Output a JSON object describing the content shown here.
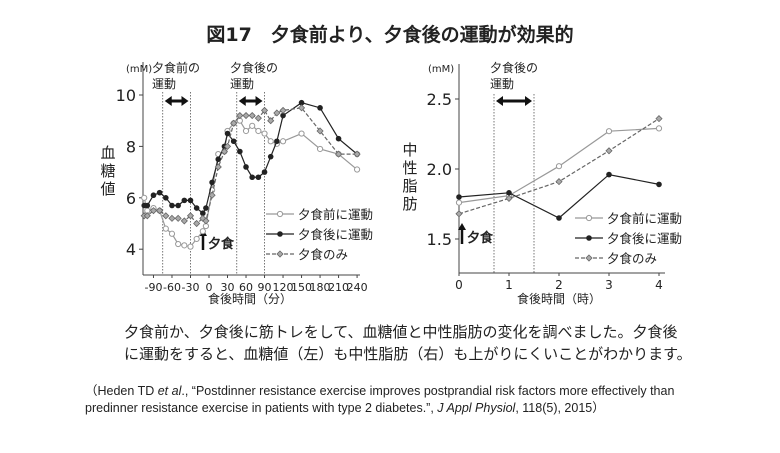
{
  "title": "図17　夕食前より、夕食後の運動が効果的",
  "caption": [
    "夕食前か、夕食後に筋トレをして、血糖値と中性脂肪の変化を調べました。夕食後",
    "に運動をすると、血糖値（左）も中性脂肪（右）も上がりにくいことがわかります。"
  ],
  "citation": {
    "pre": "（Heden TD ",
    "etal": "et al",
    "mid": "., “Postdinner resistance exercise improves postprandial risk factors more effectively than predinner resistance exercise in patients with type 2 diabetes.”, ",
    "journal": "J Appl Physiol",
    "post": ", 118(5), 2015）"
  },
  "chart_data": [
    {
      "type": "line",
      "unit": "(mM)",
      "ylabel": "血糖値",
      "xlabel": "食後時間（分）",
      "xticks": [
        -90,
        -60,
        -30,
        0,
        30,
        60,
        90,
        120,
        150,
        180,
        210,
        240
      ],
      "yticks": [
        4,
        6,
        8,
        10
      ],
      "ylim": [
        3,
        10.5
      ],
      "xlim": [
        -108,
        245
      ],
      "annotations": [
        {
          "text": [
            "夕食前の",
            "運動"
          ],
          "range": [
            -75,
            -30
          ]
        },
        {
          "text": [
            "夕食後の",
            "運動"
          ],
          "range": [
            45,
            90
          ]
        },
        {
          "text": "夕食",
          "x": -5
        }
      ],
      "x": [
        -105,
        -100,
        -90,
        -80,
        -70,
        -60,
        -50,
        -40,
        -30,
        -20,
        -10,
        -5,
        5,
        15,
        25,
        30,
        40,
        50,
        60,
        70,
        80,
        90,
        100,
        110,
        120,
        150,
        180,
        210,
        240
      ],
      "series": [
        {
          "name": "夕食前に運動",
          "marker": "open-circle",
          "color": "#999999",
          "values": [
            6.0,
            5.5,
            5.6,
            5.5,
            4.8,
            4.6,
            4.2,
            4.15,
            4.1,
            4.4,
            4.7,
            4.9,
            6.3,
            7.7,
            7.8,
            8.6,
            8.9,
            9.0,
            8.6,
            8.8,
            8.6,
            8.5,
            8.2,
            8.1,
            8.2,
            8.5,
            7.9,
            7.7,
            7.1
          ]
        },
        {
          "name": "夕食後に運動",
          "marker": "filled-circle",
          "color": "#222222",
          "values": [
            5.7,
            5.7,
            6.1,
            6.2,
            6.0,
            5.7,
            5.7,
            5.9,
            5.9,
            5.6,
            5.4,
            5.6,
            6.6,
            7.5,
            8.0,
            8.5,
            8.2,
            7.8,
            7.2,
            6.8,
            6.8,
            7.0,
            7.6,
            8.2,
            9.2,
            9.7,
            9.5,
            8.3,
            7.7
          ]
        },
        {
          "name": "夕食のみ",
          "marker": "diamond",
          "dashed": true,
          "color": "#666666",
          "values": [
            5.3,
            5.3,
            5.5,
            5.5,
            5.3,
            5.2,
            5.2,
            5.1,
            5.3,
            5.0,
            5.2,
            5.1,
            6.1,
            7.2,
            7.8,
            8.0,
            8.9,
            9.2,
            9.2,
            9.2,
            9.1,
            9.4,
            9.0,
            9.3,
            9.4,
            9.5,
            8.6,
            7.7,
            7.7
          ]
        }
      ],
      "legend": "bottom-right"
    },
    {
      "type": "line",
      "unit": "(mM)",
      "ylabel": "中性脂肪",
      "xlabel": "食後時間（時）",
      "xticks": [
        0,
        1,
        2,
        3,
        4
      ],
      "yticks": [
        1.5,
        2.0,
        2.5
      ],
      "yticklabels": [
        "1.5",
        "2.0",
        "2.5"
      ],
      "ylim": [
        1.25,
        2.75
      ],
      "xlim": [
        0,
        4.1
      ],
      "annotations": [
        {
          "text": [
            "夕食後の",
            "運動"
          ],
          "range": [
            0.7,
            1.5
          ]
        },
        {
          "text": "夕食",
          "x": 0
        }
      ],
      "x": [
        0,
        1,
        2,
        3,
        4
      ],
      "series": [
        {
          "name": "夕食前に運動",
          "marker": "open-circle",
          "color": "#999999",
          "values": [
            1.76,
            1.81,
            2.02,
            2.27,
            2.29
          ]
        },
        {
          "name": "夕食後に運動",
          "marker": "filled-circle",
          "color": "#222222",
          "values": [
            1.8,
            1.83,
            1.65,
            1.96,
            1.89
          ]
        },
        {
          "name": "夕食のみ",
          "marker": "diamond",
          "dashed": true,
          "color": "#666666",
          "values": [
            1.68,
            1.79,
            1.91,
            2.13,
            2.36
          ]
        }
      ],
      "legend": "bottom-right"
    }
  ]
}
